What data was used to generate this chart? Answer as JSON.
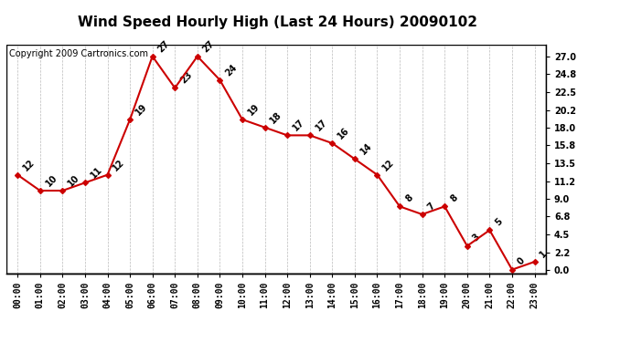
{
  "title": "Wind Speed Hourly High (Last 24 Hours) 20090102",
  "copyright": "Copyright 2009 Cartronics.com",
  "hours": [
    "00:00",
    "01:00",
    "02:00",
    "03:00",
    "04:00",
    "05:00",
    "06:00",
    "07:00",
    "08:00",
    "09:00",
    "10:00",
    "11:00",
    "12:00",
    "13:00",
    "14:00",
    "15:00",
    "16:00",
    "17:00",
    "18:00",
    "19:00",
    "20:00",
    "21:00",
    "22:00",
    "23:00"
  ],
  "values": [
    12,
    10,
    10,
    11,
    12,
    19,
    27,
    23,
    27,
    24,
    19,
    18,
    17,
    17,
    16,
    14,
    12,
    8,
    7,
    8,
    3,
    5,
    0,
    1
  ],
  "line_color": "#cc0000",
  "marker_color": "#cc0000",
  "bg_color": "#ffffff",
  "grid_color": "#bbbbbb",
  "yticks": [
    0.0,
    2.2,
    4.5,
    6.8,
    9.0,
    11.2,
    13.5,
    15.8,
    18.0,
    20.2,
    22.5,
    24.8,
    27.0
  ],
  "ylim": [
    -0.5,
    28.5
  ],
  "title_fontsize": 11,
  "copyright_fontsize": 7,
  "tick_fontsize": 7
}
